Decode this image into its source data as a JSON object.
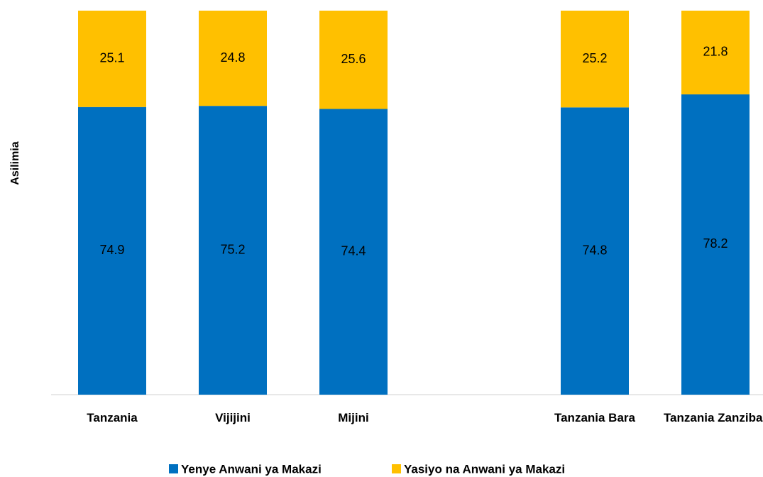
{
  "chart_data": {
    "type": "stacked_bar",
    "y_label": "Asilimia",
    "categories": [
      "Tanzania",
      "Vijijini",
      "Mijini",
      null,
      "Tanzania Bara",
      "Tanzania Zanzibar"
    ],
    "series": [
      {
        "name": "Yenye Anwani ya Makazi",
        "color": "#0070c0",
        "values": [
          74.9,
          75.2,
          74.4,
          null,
          74.8,
          78.2
        ]
      },
      {
        "name": "Yasiyo na Anwani ya Makazi",
        "color": "#ffc000",
        "values": [
          25.1,
          24.8,
          25.6,
          null,
          25.2,
          21.8
        ]
      }
    ],
    "ylim": [
      0,
      100
    ],
    "legend": "bottom"
  }
}
